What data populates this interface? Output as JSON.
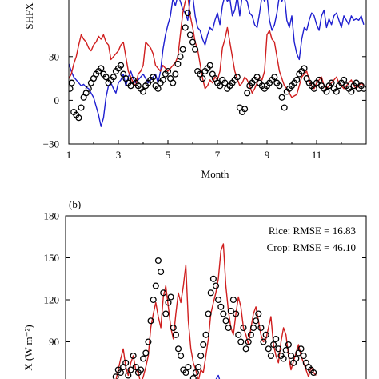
{
  "chart_data": [
    {
      "type": "line",
      "panel_label": "",
      "xlabel": "Month",
      "ylabel": "SHFX",
      "xlim": [
        1,
        13
      ],
      "ylim": [
        -30,
        70
      ],
      "xticks": [
        1,
        3,
        5,
        7,
        9,
        11
      ],
      "yticks": [
        -30,
        0,
        30
      ],
      "annotations": [],
      "series": [
        {
          "marker": "line",
          "color": "#1f1fd0",
          "x": [
            1.0,
            1.1,
            1.2,
            1.3,
            1.4,
            1.5,
            1.6,
            1.7,
            1.8,
            1.9,
            2.0,
            2.1,
            2.2,
            2.3,
            2.4,
            2.5,
            2.6,
            2.7,
            2.8,
            2.9,
            3.0,
            3.1,
            3.2,
            3.3,
            3.4,
            3.5,
            3.6,
            3.7,
            3.8,
            3.9,
            4.0,
            4.1,
            4.2,
            4.3,
            4.4,
            4.5,
            4.6,
            4.7,
            4.8,
            4.9,
            5.0,
            5.1,
            5.2,
            5.3,
            5.4,
            5.5,
            5.6,
            5.7,
            5.8,
            5.9,
            6.0,
            6.1,
            6.2,
            6.3,
            6.4,
            6.5,
            6.6,
            6.7,
            6.8,
            6.9,
            7.0,
            7.1,
            7.2,
            7.3,
            7.4,
            7.5,
            7.6,
            7.7,
            7.8,
            7.9,
            8.0,
            8.1,
            8.2,
            8.3,
            8.4,
            8.5,
            8.6,
            8.7,
            8.8,
            8.9,
            9.0,
            9.1,
            9.2,
            9.3,
            9.4,
            9.5,
            9.6,
            9.7,
            9.8,
            9.9,
            10.0,
            10.1,
            10.2,
            10.3,
            10.4,
            10.5,
            10.6,
            10.7,
            10.8,
            10.9,
            11.0,
            11.1,
            11.2,
            11.3,
            11.4,
            11.5,
            11.6,
            11.7,
            11.8,
            11.9,
            12.0,
            12.1,
            12.2,
            12.3,
            12.4,
            12.5,
            12.6,
            12.7,
            12.8,
            12.9
          ],
          "y": [
            25,
            20,
            16,
            14,
            12,
            10,
            11,
            9,
            8,
            5,
            2,
            -4,
            -10,
            -18,
            -12,
            2,
            10,
            12,
            8,
            5,
            12,
            14,
            18,
            10,
            16,
            20,
            15,
            12,
            14,
            16,
            18,
            15,
            12,
            14,
            16,
            18,
            12,
            20,
            35,
            45,
            52,
            58,
            70,
            65,
            72,
            68,
            62,
            60,
            55,
            70,
            72,
            58,
            50,
            48,
            42,
            38,
            45,
            50,
            48,
            55,
            60,
            52,
            65,
            72,
            68,
            70,
            58,
            62,
            72,
            58,
            72,
            70,
            68,
            60,
            58,
            52,
            50,
            60,
            72,
            68,
            72,
            55,
            48,
            52,
            60,
            72,
            68,
            72,
            55,
            50,
            58,
            40,
            32,
            28,
            42,
            50,
            48,
            55,
            60,
            58,
            52,
            48,
            58,
            62,
            50,
            56,
            52,
            58,
            60,
            55,
            50,
            58,
            55,
            52,
            58,
            55,
            56,
            55,
            58,
            52
          ]
        },
        {
          "marker": "line",
          "color": "#d01f1f",
          "x": [
            1.0,
            1.1,
            1.2,
            1.3,
            1.4,
            1.5,
            1.6,
            1.7,
            1.8,
            1.9,
            2.0,
            2.1,
            2.2,
            2.3,
            2.4,
            2.5,
            2.6,
            2.7,
            2.8,
            2.9,
            3.0,
            3.1,
            3.2,
            3.3,
            3.4,
            3.5,
            3.6,
            3.7,
            3.8,
            3.9,
            4.0,
            4.1,
            4.2,
            4.3,
            4.4,
            4.5,
            4.6,
            4.7,
            4.8,
            4.9,
            5.0,
            5.1,
            5.2,
            5.3,
            5.4,
            5.5,
            5.6,
            5.7,
            5.8,
            5.9,
            6.0,
            6.1,
            6.2,
            6.3,
            6.4,
            6.5,
            6.6,
            6.7,
            6.8,
            6.9,
            7.0,
            7.1,
            7.2,
            7.3,
            7.4,
            7.5,
            7.6,
            7.7,
            7.8,
            7.9,
            8.0,
            8.1,
            8.2,
            8.3,
            8.4,
            8.5,
            8.6,
            8.7,
            8.8,
            8.9,
            9.0,
            9.1,
            9.2,
            9.3,
            9.4,
            9.5,
            9.6,
            9.7,
            9.8,
            9.9,
            10.0,
            10.1,
            10.2,
            10.3,
            10.4,
            10.5,
            10.6,
            10.7,
            10.8,
            10.9,
            11.0,
            11.1,
            11.2,
            11.3,
            11.4,
            11.5,
            11.6,
            11.7,
            11.8,
            11.9,
            12.0,
            12.1,
            12.2,
            12.3,
            12.4,
            12.5,
            12.6,
            12.7,
            12.8,
            12.9
          ],
          "y": [
            15,
            18,
            25,
            30,
            38,
            45,
            42,
            40,
            36,
            34,
            38,
            40,
            44,
            42,
            45,
            40,
            38,
            28,
            30,
            32,
            34,
            38,
            40,
            30,
            20,
            16,
            12,
            10,
            18,
            20,
            24,
            40,
            38,
            36,
            32,
            24,
            22,
            20,
            24,
            22,
            20,
            22,
            24,
            26,
            30,
            45,
            60,
            68,
            72,
            58,
            50,
            40,
            35,
            25,
            15,
            8,
            10,
            14,
            12,
            16,
            14,
            20,
            36,
            42,
            50,
            40,
            30,
            20,
            15,
            10,
            12,
            16,
            14,
            10,
            5,
            8,
            12,
            16,
            14,
            20,
            45,
            48,
            42,
            40,
            30,
            20,
            15,
            10,
            8,
            5,
            2,
            3,
            4,
            10,
            16,
            18,
            20,
            14,
            10,
            8,
            12,
            14,
            16,
            10,
            8,
            10,
            12,
            14,
            16,
            12,
            10,
            8,
            10,
            12,
            14,
            10,
            8,
            10,
            12,
            10
          ]
        },
        {
          "marker": "circle",
          "color": "#000000",
          "x": [
            1.05,
            1.12,
            1.2,
            1.3,
            1.4,
            1.5,
            1.6,
            1.7,
            1.8,
            1.9,
            2.0,
            2.1,
            2.2,
            2.3,
            2.4,
            2.5,
            2.6,
            2.7,
            2.8,
            2.9,
            3.0,
            3.1,
            3.2,
            3.3,
            3.4,
            3.5,
            3.6,
            3.7,
            3.8,
            3.9,
            4.0,
            4.1,
            4.2,
            4.3,
            4.4,
            4.5,
            4.6,
            4.7,
            4.8,
            4.9,
            5.0,
            5.1,
            5.2,
            5.3,
            5.4,
            5.5,
            5.6,
            5.7,
            5.8,
            5.9,
            6.0,
            6.1,
            6.2,
            6.3,
            6.4,
            6.5,
            6.6,
            6.7,
            6.8,
            6.9,
            7.0,
            7.1,
            7.2,
            7.3,
            7.4,
            7.5,
            7.6,
            7.7,
            7.8,
            7.9,
            8.0,
            8.1,
            8.2,
            8.3,
            8.4,
            8.5,
            8.6,
            8.7,
            8.8,
            8.9,
            9.0,
            9.1,
            9.2,
            9.3,
            9.4,
            9.5,
            9.6,
            9.7,
            9.8,
            9.9,
            10.0,
            10.1,
            10.2,
            10.3,
            10.4,
            10.5,
            10.6,
            10.7,
            10.8,
            10.9,
            11.0,
            11.1,
            11.2,
            11.3,
            11.4,
            11.5,
            11.6,
            11.7,
            11.8,
            11.9,
            12.0,
            12.1,
            12.2,
            12.3,
            12.4,
            12.5,
            12.6,
            12.7,
            12.8,
            12.9
          ],
          "y": [
            8,
            12,
            -8,
            -10,
            -12,
            -5,
            2,
            5,
            8,
            12,
            15,
            18,
            20,
            22,
            18,
            16,
            12,
            14,
            16,
            20,
            22,
            24,
            18,
            15,
            12,
            10,
            14,
            12,
            10,
            8,
            6,
            10,
            12,
            14,
            16,
            10,
            8,
            12,
            14,
            18,
            20,
            15,
            12,
            18,
            25,
            30,
            35,
            50,
            60,
            45,
            40,
            35,
            20,
            18,
            15,
            20,
            22,
            24,
            18,
            15,
            12,
            10,
            14,
            12,
            8,
            10,
            12,
            14,
            16,
            -5,
            -8,
            -6,
            5,
            10,
            12,
            14,
            16,
            12,
            10,
            8,
            10,
            12,
            14,
            16,
            12,
            10,
            2,
            -5,
            6,
            8,
            10,
            12,
            14,
            18,
            20,
            22,
            15,
            12,
            10,
            8,
            12,
            14,
            10,
            8,
            6,
            10,
            12,
            8,
            6,
            10,
            12,
            14,
            10,
            8,
            6,
            10,
            12,
            8,
            10,
            8
          ]
        }
      ]
    },
    {
      "type": "line",
      "panel_label": "(b)",
      "xlabel": "",
      "ylabel": "X (W m⁻²)",
      "xlim": [
        1,
        13
      ],
      "ylim": [
        60,
        180
      ],
      "yticks": [
        90,
        120,
        150,
        180
      ],
      "annotations": [
        "Rice: RMSE = 16.83",
        "Crop: RMSE = 46.10"
      ],
      "series": [
        {
          "marker": "line",
          "color": "#1f1fd0",
          "x": [
            6.9,
            7.0,
            7.1,
            7.2
          ],
          "y": [
            60,
            63,
            66,
            60
          ]
        },
        {
          "marker": "line",
          "color": "#d01f1f",
          "x": [
            3.0,
            3.1,
            3.2,
            3.3,
            3.4,
            3.5,
            3.6,
            3.7,
            3.8,
            3.9,
            4.0,
            4.1,
            4.2,
            4.3,
            4.4,
            4.5,
            4.6,
            4.7,
            4.8,
            4.9,
            5.0,
            5.1,
            5.2,
            5.3,
            5.4,
            5.5,
            5.6,
            5.7,
            5.8,
            5.9,
            6.0,
            6.1,
            6.2,
            6.3,
            6.4,
            6.5,
            6.6,
            6.7,
            6.8,
            6.9,
            7.0,
            7.1,
            7.2,
            7.3,
            7.4,
            7.5,
            7.6,
            7.7,
            7.8,
            7.9,
            8.0,
            8.1,
            8.2,
            8.3,
            8.4,
            8.5,
            8.6,
            8.7,
            8.8,
            8.9,
            9.0,
            9.1,
            9.2,
            9.3,
            9.4,
            9.5,
            9.6,
            9.7,
            9.8,
            9.9,
            10.0,
            10.1,
            10.2,
            10.3,
            10.4,
            10.5,
            10.6,
            10.7,
            10.8,
            10.9,
            11.0
          ],
          "y": [
            62,
            70,
            78,
            85,
            72,
            66,
            75,
            80,
            70,
            68,
            60,
            65,
            72,
            80,
            100,
            110,
            118,
            108,
            100,
            122,
            130,
            115,
            100,
            92,
            110,
            125,
            118,
            130,
            145,
            105,
            85,
            75,
            70,
            62,
            70,
            68,
            80,
            92,
            110,
            118,
            125,
            135,
            155,
            160,
            130,
            112,
            100,
            95,
            110,
            122,
            115,
            100,
            95,
            88,
            100,
            110,
            115,
            105,
            95,
            90,
            92,
            100,
            108,
            88,
            80,
            75,
            90,
            100,
            95,
            80,
            70,
            76,
            82,
            88,
            80,
            75,
            70,
            65,
            72,
            68,
            66
          ]
        },
        {
          "marker": "circle",
          "color": "#000000",
          "x": [
            3.0,
            3.1,
            3.2,
            3.3,
            3.4,
            3.5,
            3.6,
            3.7,
            3.8,
            3.9,
            4.0,
            4.1,
            4.2,
            4.3,
            4.4,
            4.5,
            4.6,
            4.7,
            4.8,
            4.9,
            5.0,
            5.1,
            5.2,
            5.3,
            5.4,
            5.5,
            5.6,
            5.7,
            5.8,
            5.9,
            6.0,
            6.1,
            6.2,
            6.3,
            6.4,
            6.5,
            6.6,
            6.7,
            6.8,
            6.9,
            7.0,
            7.1,
            7.2,
            7.3,
            7.4,
            7.5,
            7.6,
            7.7,
            7.8,
            7.9,
            8.0,
            8.1,
            8.2,
            8.3,
            8.4,
            8.5,
            8.6,
            8.7,
            8.8,
            8.9,
            9.0,
            9.1,
            9.2,
            9.3,
            9.4,
            9.5,
            9.6,
            9.7,
            9.8,
            9.9,
            10.0,
            10.1,
            10.2,
            10.3,
            10.4,
            10.5,
            10.6,
            10.7,
            10.8,
            10.9
          ],
          "y": [
            65,
            70,
            68,
            72,
            75,
            66,
            70,
            80,
            72,
            68,
            70,
            78,
            82,
            90,
            105,
            120,
            130,
            148,
            140,
            125,
            110,
            118,
            122,
            100,
            95,
            85,
            80,
            70,
            68,
            72,
            60,
            64,
            68,
            72,
            80,
            88,
            95,
            110,
            125,
            135,
            130,
            120,
            115,
            110,
            105,
            100,
            112,
            120,
            110,
            95,
            90,
            100,
            85,
            90,
            95,
            100,
            105,
            110,
            100,
            90,
            95,
            85,
            80,
            88,
            92,
            85,
            80,
            78,
            84,
            88,
            80,
            75,
            78,
            82,
            85,
            80,
            75,
            72,
            70,
            68
          ]
        }
      ]
    }
  ]
}
